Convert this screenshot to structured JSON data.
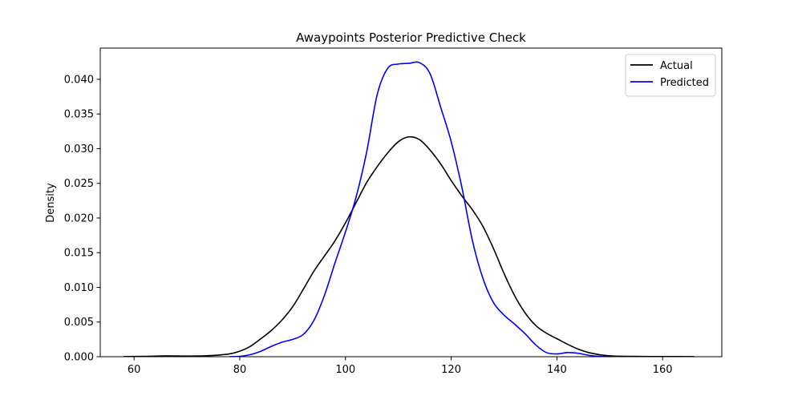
{
  "chart_data": {
    "type": "line",
    "title": "Awaypoints Posterior Predictive Check",
    "xlabel": "",
    "ylabel": "Density",
    "xlim": [
      53.6,
      171.2
    ],
    "ylim": [
      0.0,
      0.0445
    ],
    "x_ticks": [
      60,
      80,
      100,
      120,
      140,
      160
    ],
    "y_ticks": [
      0.0,
      0.005,
      0.01,
      0.015,
      0.02,
      0.025,
      0.03,
      0.035,
      0.04
    ],
    "grid": false,
    "legend": {
      "placement": "top-right",
      "entries": [
        "Actual",
        "Predicted"
      ]
    },
    "series": [
      {
        "name": "Actual",
        "color": "#000000",
        "points": [
          [
            58,
            2e-05
          ],
          [
            62,
            5e-05
          ],
          [
            66,
            0.00013
          ],
          [
            70,
            0.0001
          ],
          [
            74,
            0.00015
          ],
          [
            78,
            0.0004
          ],
          [
            80,
            0.0008
          ],
          [
            82,
            0.0015
          ],
          [
            84,
            0.0026
          ],
          [
            86,
            0.0038
          ],
          [
            88,
            0.0053
          ],
          [
            90,
            0.0072
          ],
          [
            92,
            0.0097
          ],
          [
            94,
            0.0123
          ],
          [
            96,
            0.0145
          ],
          [
            98,
            0.0167
          ],
          [
            100,
            0.0193
          ],
          [
            102,
            0.0222
          ],
          [
            104,
            0.0251
          ],
          [
            106,
            0.0274
          ],
          [
            108,
            0.0294
          ],
          [
            110,
            0.031
          ],
          [
            112,
            0.0317
          ],
          [
            114,
            0.0313
          ],
          [
            116,
            0.0298
          ],
          [
            118,
            0.0278
          ],
          [
            120,
            0.0254
          ],
          [
            122,
            0.0232
          ],
          [
            124,
            0.0212
          ],
          [
            126,
            0.0188
          ],
          [
            128,
            0.0156
          ],
          [
            130,
            0.012
          ],
          [
            132,
            0.0088
          ],
          [
            134,
            0.0063
          ],
          [
            136,
            0.0045
          ],
          [
            138,
            0.0034
          ],
          [
            140,
            0.0026
          ],
          [
            142,
            0.0018
          ],
          [
            144,
            0.0011
          ],
          [
            146,
            0.0006
          ],
          [
            148,
            0.0003
          ],
          [
            150,
            0.00012
          ],
          [
            154,
            5e-05
          ],
          [
            158,
            3e-05
          ],
          [
            162,
            2e-05
          ],
          [
            166,
            1e-05
          ]
        ]
      },
      {
        "name": "Predicted",
        "color": "#0000ff",
        "points": [
          [
            78,
            0.0
          ],
          [
            80,
            5e-05
          ],
          [
            82,
            0.0003
          ],
          [
            84,
            0.0008
          ],
          [
            86,
            0.0015
          ],
          [
            88,
            0.0021
          ],
          [
            90,
            0.0025
          ],
          [
            92,
            0.0032
          ],
          [
            94,
            0.0052
          ],
          [
            96,
            0.0088
          ],
          [
            98,
            0.0135
          ],
          [
            100,
            0.018
          ],
          [
            102,
            0.023
          ],
          [
            104,
            0.0295
          ],
          [
            106,
            0.0378
          ],
          [
            108,
            0.0416
          ],
          [
            110,
            0.0422
          ],
          [
            112,
            0.0423
          ],
          [
            114,
            0.0424
          ],
          [
            116,
            0.0408
          ],
          [
            118,
            0.036
          ],
          [
            120,
            0.031
          ],
          [
            122,
            0.0245
          ],
          [
            124,
            0.0168
          ],
          [
            126,
            0.0113
          ],
          [
            128,
            0.0078
          ],
          [
            130,
            0.006
          ],
          [
            132,
            0.0047
          ],
          [
            134,
            0.0033
          ],
          [
            136,
            0.0017
          ],
          [
            138,
            0.0006
          ],
          [
            140,
            0.0004
          ],
          [
            142,
            0.0006
          ],
          [
            144,
            0.0005
          ],
          [
            146,
            0.0002
          ],
          [
            148,
            5e-05
          ],
          [
            150,
            0.0
          ]
        ]
      }
    ]
  }
}
